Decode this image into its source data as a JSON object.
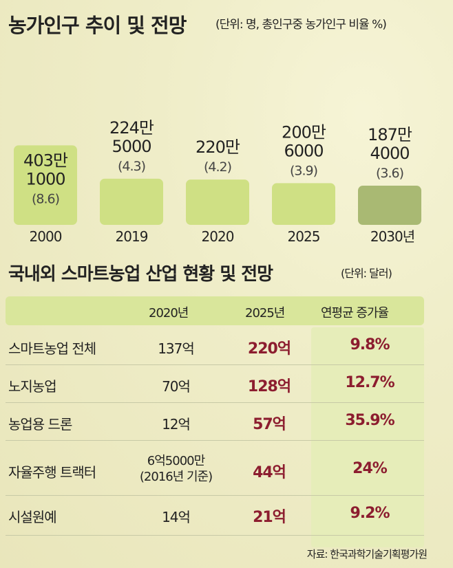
{
  "chart_title": "농가인구 추이 및 전망",
  "chart_unit": "(단위: 명, 총인구중 농가인구 비율 %)",
  "chart_data": {
    "type": "bar",
    "categories": [
      "2000",
      "2019",
      "2020",
      "2025",
      "2030년"
    ],
    "values": [
      4031000,
      2245000,
      2200000,
      2006000,
      1874000
    ],
    "value_labels": [
      {
        "line1": "403만",
        "line2": "1000",
        "ratio": "(8.6)"
      },
      {
        "line1": "224만",
        "line2": "5000",
        "ratio": "(4.3)"
      },
      {
        "line1": "220만",
        "line2": "",
        "ratio": "(4.2)"
      },
      {
        "line1": "200만",
        "line2": "6000",
        "ratio": "(3.9)"
      },
      {
        "line1": "187만",
        "line2": "4000",
        "ratio": "(3.6)"
      }
    ],
    "ratios": [
      8.6,
      4.3,
      4.2,
      3.9,
      3.6
    ],
    "bar_colors": [
      "#cfe084",
      "#cfe084",
      "#cfe084",
      "#cfe084",
      "#a9b973"
    ]
  },
  "table_title": "국내외 스마트농업 산업 현황 및 전망",
  "table_unit": "(단위: 달러)",
  "table": {
    "headers": [
      "2020년",
      "2025년",
      "연평균 증가율"
    ],
    "rows": [
      {
        "name": "스마트농업 전체",
        "v2020": "137억",
        "v2020b": "",
        "v2025": "220억",
        "cagr": "9.8%"
      },
      {
        "name": "노지농업",
        "v2020": "70억",
        "v2020b": "",
        "v2025": "128억",
        "cagr": "12.7%"
      },
      {
        "name": "농업용 드론",
        "v2020": "12억",
        "v2020b": "",
        "v2025": "57억",
        "cagr": "35.9%"
      },
      {
        "name": "자율주행 트랙터",
        "v2020": "6억5000만",
        "v2020b": "(2016년 기준)",
        "v2025": "44억",
        "cagr": "24%"
      },
      {
        "name": "시설원예",
        "v2020": "14억",
        "v2020b": "",
        "v2025": "21억",
        "cagr": "9.2%"
      }
    ]
  },
  "source": "자료: 한국과학기술기획평가원"
}
